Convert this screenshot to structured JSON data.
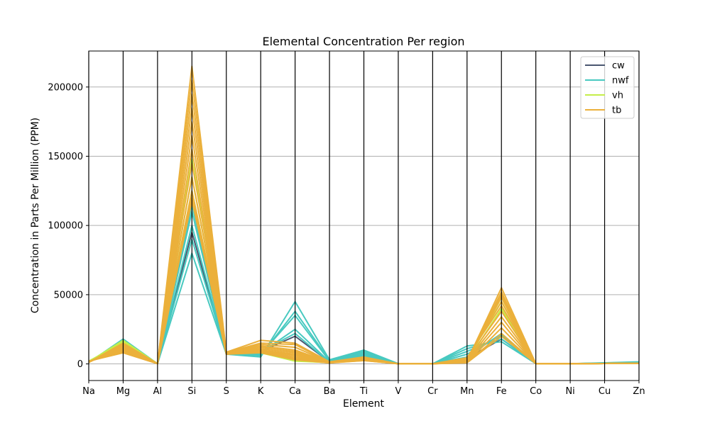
{
  "chart_data": {
    "type": "line",
    "subtype": "parallel-coordinates",
    "title": "Elemental Concentration Per region",
    "xlabel": "Element",
    "ylabel": "Concentration in Parts Per Million (PPM)",
    "categories": [
      "Na",
      "Mg",
      "Al",
      "Si",
      "S",
      "K",
      "Ca",
      "Ba",
      "Ti",
      "V",
      "Cr",
      "Mn",
      "Fe",
      "Co",
      "Ni",
      "Cu",
      "Zn"
    ],
    "ylim": [
      -12000,
      226000
    ],
    "yticks": [
      0,
      50000,
      100000,
      150000,
      200000
    ],
    "ytick_labels": [
      "0",
      "50000",
      "100000",
      "150000",
      "200000"
    ],
    "grid": true,
    "legend_position": "top-right",
    "series": [
      {
        "name": "cw",
        "color": "#4a5670",
        "lines": [
          [
            1500,
            12000,
            200,
            95000,
            7500,
            9000,
            20000,
            1500,
            5000,
            200,
            100,
            4000,
            18000,
            200,
            150,
            300,
            500
          ]
        ]
      },
      {
        "name": "nwf",
        "color": "#48c9c0",
        "lines": [
          [
            1000,
            18000,
            150,
            80000,
            7000,
            5000,
            45000,
            3000,
            10000,
            200,
            100,
            13000,
            16000,
            200,
            150,
            800,
            1500
          ],
          [
            1200,
            15000,
            180,
            90000,
            7500,
            6000,
            38000,
            2500,
            9000,
            200,
            100,
            11000,
            18000,
            200,
            150,
            700,
            1300
          ],
          [
            1500,
            14000,
            200,
            100000,
            7200,
            7000,
            35000,
            2000,
            8000,
            180,
            100,
            9000,
            20000,
            200,
            150,
            600,
            1200
          ],
          [
            1800,
            13000,
            200,
            110000,
            7800,
            8000,
            25000,
            1500,
            7000,
            150,
            100,
            7000,
            21000,
            200,
            150,
            500,
            1000
          ],
          [
            2000,
            12000,
            220,
            115000,
            8000,
            9000,
            22000,
            1200,
            6000,
            150,
            100,
            5000,
            22000,
            200,
            150,
            400,
            900
          ]
        ]
      },
      {
        "name": "vh",
        "color": "#c4ee4a",
        "lines": [
          [
            1500,
            17000,
            150,
            148000,
            8000,
            8000,
            2000,
            1000,
            3000,
            100,
            80,
            2000,
            48000,
            200,
            150,
            300,
            500
          ],
          [
            1800,
            16000,
            180,
            135000,
            7800,
            10000,
            3000,
            900,
            3500,
            100,
            80,
            2500,
            45000,
            200,
            150,
            300,
            500
          ],
          [
            2000,
            15000,
            200,
            125000,
            7600,
            9000,
            2500,
            800,
            3000,
            100,
            80,
            1500,
            40000,
            200,
            150,
            300,
            500
          ]
        ]
      },
      {
        "name": "tb",
        "color": "#ebb03b",
        "lines": [
          [
            2000,
            8000,
            150,
            215000,
            8500,
            17000,
            15000,
            1500,
            5000,
            100,
            80,
            2000,
            55000,
            200,
            150,
            300,
            500
          ],
          [
            1800,
            9000,
            160,
            205000,
            8200,
            15000,
            14000,
            1400,
            4500,
            100,
            80,
            2500,
            52000,
            200,
            150,
            300,
            500
          ],
          [
            1600,
            10000,
            170,
            195000,
            8000,
            14000,
            12000,
            1300,
            4000,
            100,
            80,
            3000,
            50000,
            200,
            150,
            300,
            500
          ],
          [
            1500,
            11000,
            180,
            185000,
            7800,
            13000,
            10000,
            1200,
            3800,
            100,
            80,
            3500,
            48000,
            200,
            150,
            300,
            500
          ],
          [
            1400,
            12000,
            190,
            175000,
            7600,
            12000,
            9000,
            1100,
            3600,
            100,
            80,
            4000,
            45000,
            200,
            150,
            300,
            500
          ],
          [
            1300,
            13000,
            200,
            165000,
            7500,
            11000,
            8000,
            1000,
            3400,
            100,
            80,
            4500,
            42000,
            200,
            150,
            300,
            500
          ],
          [
            1200,
            14000,
            200,
            155000,
            7400,
            10000,
            7000,
            1000,
            3200,
            100,
            80,
            3000,
            38000,
            200,
            150,
            300,
            500
          ],
          [
            1100,
            15000,
            200,
            145000,
            7300,
            10000,
            6000,
            900,
            3000,
            100,
            80,
            2000,
            34000,
            200,
            150,
            300,
            500
          ],
          [
            1000,
            14000,
            200,
            135000,
            7200,
            9500,
            5000,
            900,
            2800,
            100,
            80,
            1500,
            30000,
            200,
            150,
            300,
            500
          ],
          [
            1200,
            13000,
            200,
            125000,
            7100,
            9000,
            4000,
            800,
            2600,
            100,
            80,
            1200,
            26000,
            200,
            150,
            300,
            500
          ],
          [
            1400,
            12000,
            200,
            120000,
            7000,
            8500,
            3500,
            800,
            2500,
            100,
            80,
            1000,
            22000,
            200,
            150,
            300,
            500
          ],
          [
            1600,
            11000,
            200,
            118000,
            7000,
            8000,
            3000,
            700,
            2400,
            100,
            80,
            800,
            20000,
            200,
            150,
            300,
            500
          ]
        ]
      }
    ]
  }
}
